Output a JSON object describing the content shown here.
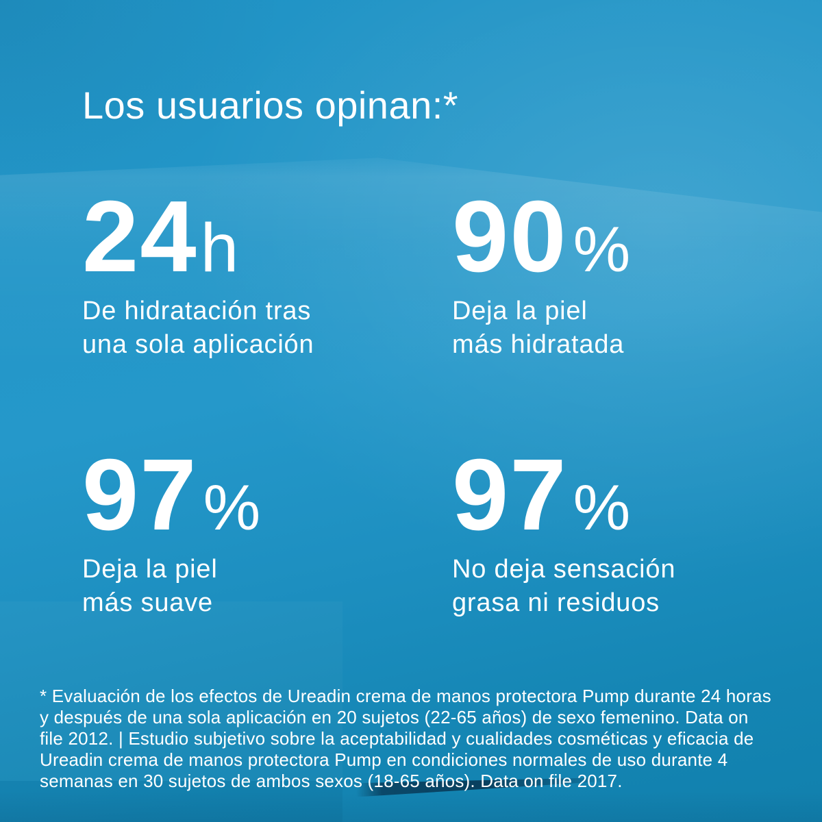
{
  "page": {
    "title": "Los usuarios opinan:*"
  },
  "stats": [
    {
      "value": "24",
      "unit": "h",
      "lines": [
        "De hidratación tras",
        "una sola aplicación"
      ]
    },
    {
      "value": "90",
      "unit": "%",
      "lines": [
        "Deja la piel",
        "más hidratada"
      ]
    },
    {
      "value": "97",
      "unit": "%",
      "lines": [
        "Deja la piel",
        "más suave"
      ]
    },
    {
      "value": "97",
      "unit": "%",
      "lines": [
        "No deja sensación",
        "grasa ni residuos"
      ]
    }
  ],
  "footnote": {
    "lines": [
      "* Evaluación de los efectos de Ureadin crema de manos protectora Pump durante 24 horas",
      "y después de una sola aplicación en 20 sujetos (22-65 años) de sexo femenino. Data on",
      "file 2012. | Estudio subjetivo sobre la aceptabilidad y cualidades cosméticas y eficacia de",
      "Ureadin crema de manos protectora Pump en condiciones normales de uso durante 4",
      "semanas en 30 sujetos de ambos sexos (18-65 años). Data on file 2017."
    ]
  },
  "colors": {
    "background_mid": "#2598ca",
    "background_light": "#35a3d2",
    "background_bottom": "#1180ad",
    "fold_shadow": "#0a4a6e",
    "text": "#ffffff"
  }
}
